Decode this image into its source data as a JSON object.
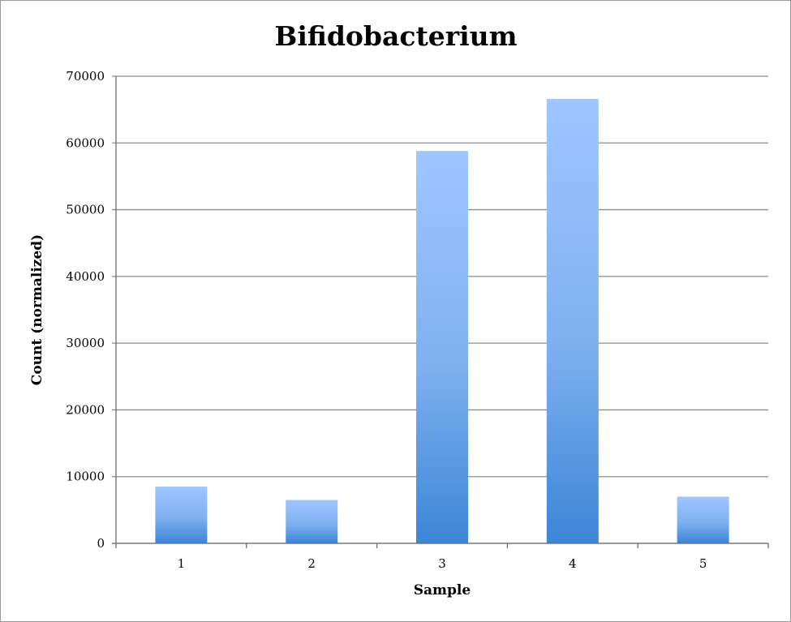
{
  "chart_data": {
    "type": "bar",
    "title": "Bifidobacterium",
    "xlabel": "Sample",
    "ylabel": "Count (normalized)",
    "categories": [
      "1",
      "2",
      "3",
      "4",
      "5"
    ],
    "values": [
      8500,
      6500,
      58800,
      66600,
      7000
    ],
    "ylim": [
      0,
      70000
    ],
    "yticks": [
      "0",
      "10000",
      "20000",
      "30000",
      "40000",
      "50000",
      "60000",
      "70000"
    ],
    "grid": true,
    "legend": "none",
    "colors": {
      "bar_top": "#9fc6ff",
      "bar_bottom": "#3b86d6",
      "grid": "#8c8c8c",
      "axis": "#6e6e6e"
    }
  }
}
